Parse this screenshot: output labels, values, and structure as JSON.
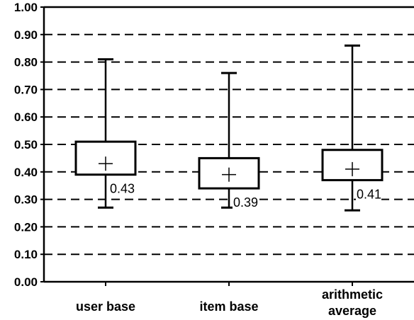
{
  "chart_data": {
    "type": "box",
    "title": "",
    "xlabel": "",
    "ylabel": "",
    "ylim": [
      0.0,
      1.0
    ],
    "ytick_labels": [
      "0.00",
      "0.10",
      "0.20",
      "0.30",
      "0.40",
      "0.50",
      "0.60",
      "0.70",
      "0.80",
      "0.90",
      "1.00"
    ],
    "grid": "horizontal dashed",
    "categories": [
      {
        "label": [
          "user base"
        ],
        "min": 0.27,
        "q1": 0.39,
        "q3": 0.51,
        "max": 0.81,
        "mean": 0.43,
        "mean_label": "0.43"
      },
      {
        "label": [
          "item base"
        ],
        "min": 0.27,
        "q1": 0.34,
        "q3": 0.45,
        "max": 0.76,
        "mean": 0.39,
        "mean_label": "0.39"
      },
      {
        "label": [
          "arithmetic",
          "average"
        ],
        "min": 0.26,
        "q1": 0.37,
        "q3": 0.48,
        "max": 0.86,
        "mean": 0.41,
        "mean_label": "0.41"
      }
    ],
    "colors": {
      "stroke": "#000000",
      "box_fill": "#ffffff",
      "grid": "#000000"
    }
  }
}
